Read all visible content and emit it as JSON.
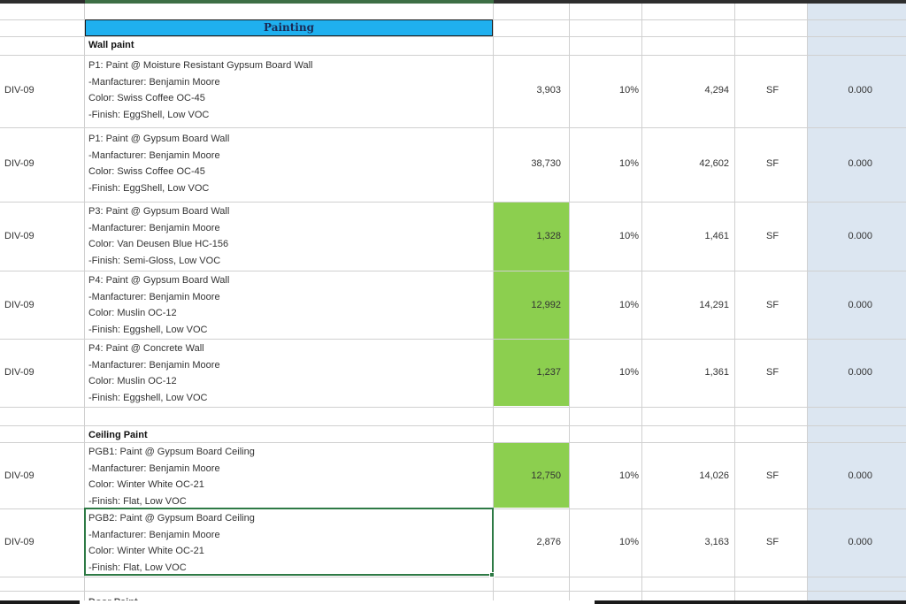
{
  "section_title": "Painting",
  "groups": {
    "wall": "Wall paint",
    "ceiling": "Ceiling Paint",
    "next": "Door Paint"
  },
  "rows": [
    {
      "div": "DIV-09",
      "desc": [
        "P1: Paint @ Moisture Resistant Gypsum Board Wall",
        "-Manfacturer: Benjamin Moore",
        "Color: Swiss Coffee OC-45",
        "-Finish: EggShell, Low VOC"
      ],
      "qty": "3,903",
      "waste": "10%",
      "total": "4,294",
      "unit": "SF",
      "cost": "0.000"
    },
    {
      "div": "DIV-09",
      "desc": [
        "P1: Paint @ Gypsum Board Wall",
        "-Manfacturer: Benjamin Moore",
        "Color: Swiss Coffee OC-45",
        "-Finish: EggShell, Low VOC"
      ],
      "qty": "38,730",
      "waste": "10%",
      "total": "42,602",
      "unit": "SF",
      "cost": "0.000"
    },
    {
      "div": "DIV-09",
      "desc": [
        "P3: Paint @ Gypsum Board Wall",
        "-Manfacturer: Benjamin Moore",
        "Color: Van Deusen Blue HC-156",
        "-Finish: Semi-Gloss, Low VOC"
      ],
      "qty": "1,328",
      "waste": "10%",
      "total": "1,461",
      "unit": "SF",
      "cost": "0.000"
    },
    {
      "div": "DIV-09",
      "desc": [
        "P4: Paint @ Gypsum Board Wall",
        "-Manfacturer: Benjamin Moore",
        "Color: Muslin OC-12",
        "-Finish: Eggshell, Low VOC"
      ],
      "qty": "12,992",
      "waste": "10%",
      "total": "14,291",
      "unit": "SF",
      "cost": "0.000"
    },
    {
      "div": "DIV-09",
      "desc": [
        "P4: Paint @ Concrete Wall",
        "-Manfacturer: Benjamin Moore",
        "Color: Muslin OC-12",
        "-Finish: Eggshell, Low VOC"
      ],
      "qty": "1,237",
      "waste": "10%",
      "total": "1,361",
      "unit": "SF",
      "cost": "0.000"
    },
    {
      "div": "DIV-09",
      "desc": [
        "PGB1: Paint @ Gypsum Board Ceiling",
        "-Manfacturer: Benjamin Moore",
        "Color: Winter White OC-21",
        "-Finish: Flat, Low VOC"
      ],
      "qty": "12,750",
      "waste": "10%",
      "total": "14,026",
      "unit": "SF",
      "cost": "0.000"
    },
    {
      "div": "DIV-09",
      "desc": [
        "PGB2: Paint @ Gypsum Board Ceiling",
        "-Manfacturer: Benjamin Moore",
        "Color: Winter White OC-21",
        "-Finish: Flat, Low VOC"
      ],
      "qty": "2,876",
      "waste": "10%",
      "total": "3,163",
      "unit": "SF",
      "cost": "0.000"
    }
  ],
  "colors": {
    "header_fill": "#1fb0ef",
    "highlight_fill": "#8ccf4f",
    "cost_column_fill": "#dce6f1",
    "selection_border": "#2e7a45"
  }
}
